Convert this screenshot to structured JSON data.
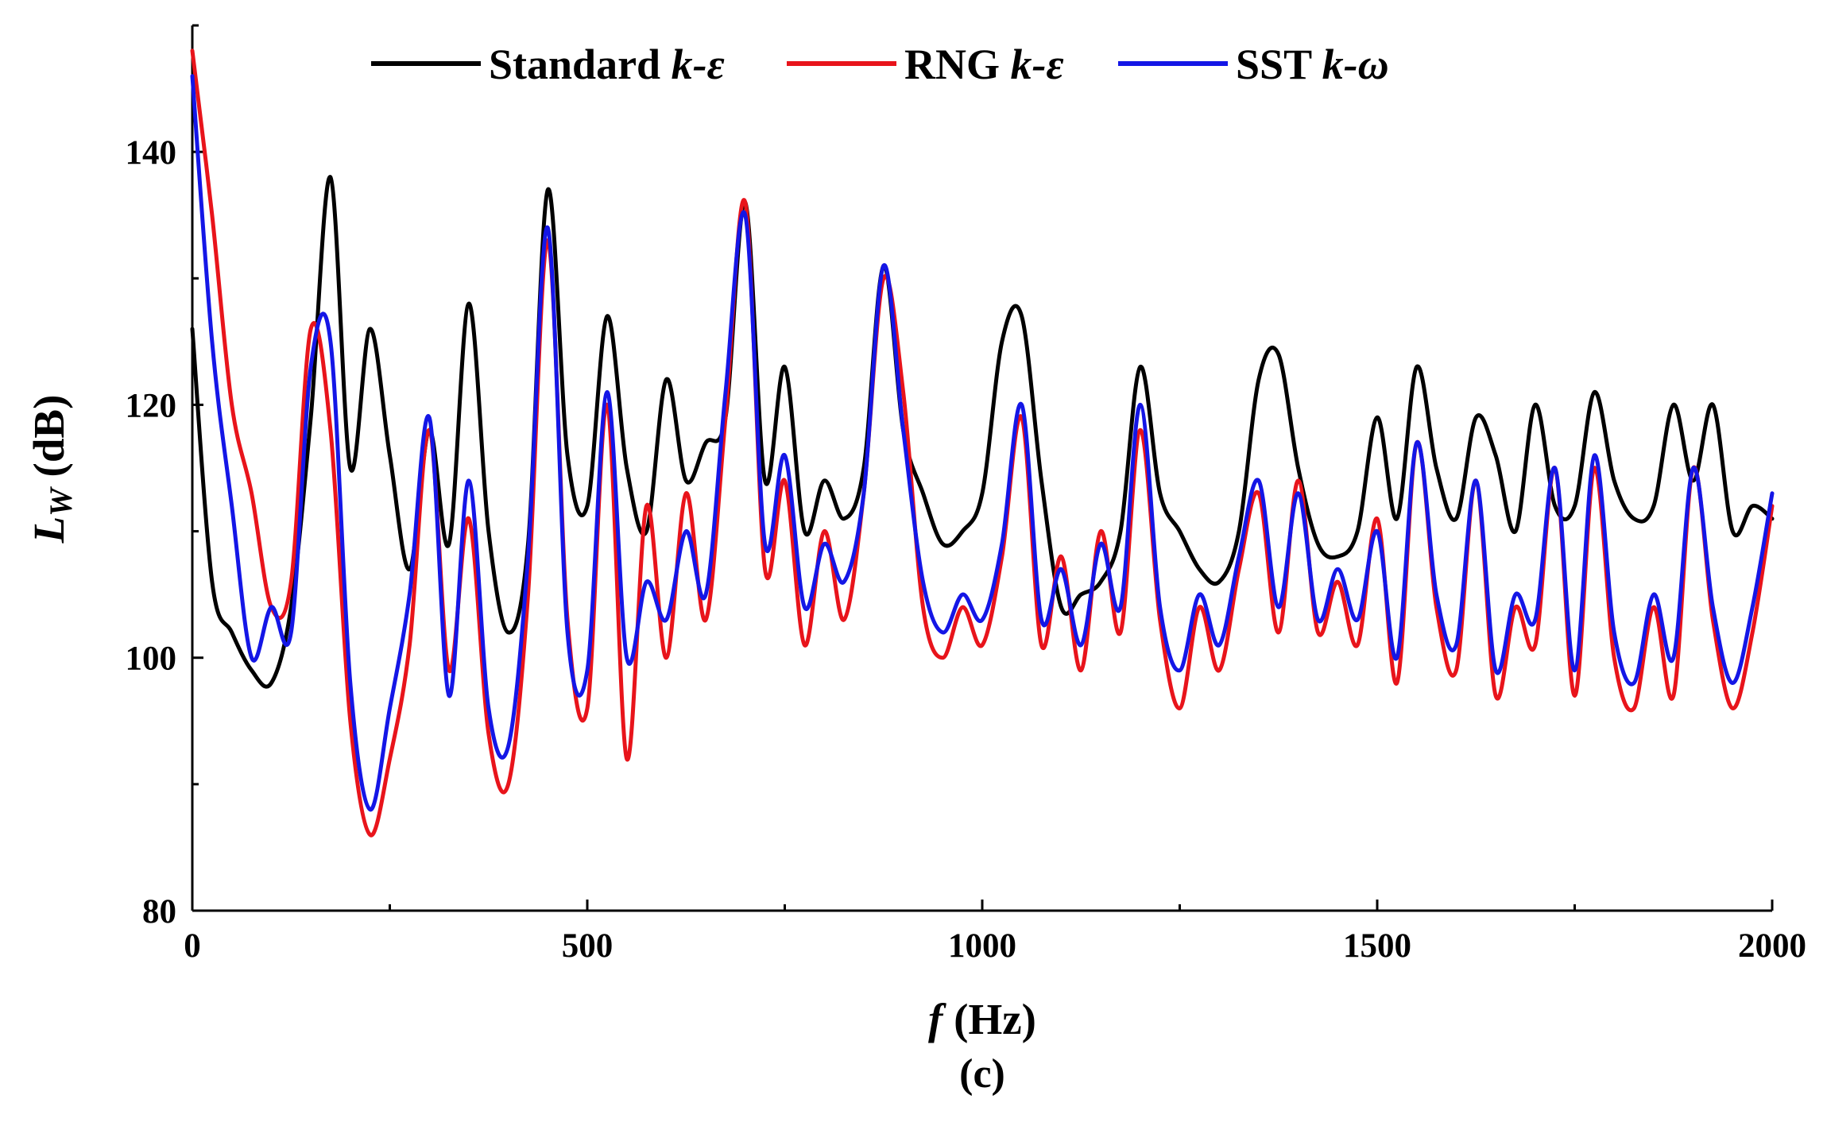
{
  "chart_data": {
    "type": "line",
    "caption": "(c)",
    "xlabel_symbol": "f",
    "xlabel_unit": " (Hz)",
    "ylabel_symbol": "L",
    "ylabel_sub": "W",
    "ylabel_unit": " (dB)",
    "xlim": [
      0,
      2000
    ],
    "ylim": [
      80,
      150
    ],
    "xticks": [
      0,
      500,
      1000,
      1500,
      2000
    ],
    "xtick_labels": [
      "0",
      "500",
      "1000",
      "1500",
      "2000"
    ],
    "yticks": [
      80,
      100,
      120,
      140
    ],
    "ytick_labels": [
      "80",
      "100",
      "120",
      "140"
    ],
    "legend_position": "top-center",
    "series": [
      {
        "name": "Standard",
        "name_italic": "k-ε",
        "color": "#000000",
        "x": [
          0,
          25,
          50,
          75,
          100,
          125,
          150,
          175,
          200,
          225,
          250,
          275,
          300,
          325,
          350,
          375,
          400,
          425,
          450,
          475,
          500,
          525,
          550,
          575,
          600,
          625,
          650,
          675,
          700,
          725,
          750,
          775,
          800,
          825,
          850,
          875,
          900,
          925,
          950,
          975,
          1000,
          1025,
          1050,
          1075,
          1100,
          1125,
          1150,
          1175,
          1200,
          1225,
          1250,
          1275,
          1300,
          1325,
          1350,
          1375,
          1400,
          1425,
          1450,
          1475,
          1500,
          1525,
          1550,
          1575,
          1600,
          1625,
          1650,
          1675,
          1700,
          1725,
          1750,
          1775,
          1800,
          1825,
          1850,
          1875,
          1900,
          1925,
          1950,
          1975,
          2000
        ],
        "y": [
          126,
          106,
          102,
          99,
          98,
          104,
          119,
          138,
          115,
          126,
          116,
          107,
          118,
          109,
          128,
          110,
          102,
          109,
          137,
          116,
          112,
          127,
          115,
          110,
          122,
          114,
          117,
          119,
          136,
          114,
          123,
          110,
          114,
          111,
          115,
          131,
          118,
          113,
          109,
          110,
          113,
          125,
          127,
          114,
          104,
          105,
          106,
          110,
          123,
          113,
          110,
          107,
          106,
          110,
          122,
          124,
          115,
          109,
          108,
          110,
          119,
          111,
          123,
          115,
          111,
          119,
          116,
          110,
          120,
          112,
          112,
          121,
          114,
          111,
          112,
          120,
          114,
          120,
          110,
          112,
          111
        ]
      },
      {
        "name": "RNG",
        "name_italic": "k-ε",
        "color": "#e8141b",
        "x": [
          0,
          25,
          50,
          75,
          100,
          125,
          150,
          175,
          200,
          225,
          250,
          275,
          300,
          325,
          350,
          375,
          400,
          425,
          450,
          475,
          500,
          525,
          550,
          575,
          600,
          625,
          650,
          675,
          700,
          725,
          750,
          775,
          800,
          825,
          850,
          875,
          900,
          925,
          950,
          975,
          1000,
          1025,
          1050,
          1075,
          1100,
          1125,
          1150,
          1175,
          1200,
          1225,
          1250,
          1275,
          1300,
          1325,
          1350,
          1375,
          1400,
          1425,
          1450,
          1475,
          1500,
          1525,
          1550,
          1575,
          1600,
          1625,
          1650,
          1675,
          1700,
          1725,
          1750,
          1775,
          1800,
          1825,
          1850,
          1875,
          1900,
          1925,
          1950,
          1975,
          2000
        ],
        "y": [
          148,
          135,
          120,
          113,
          104,
          106,
          126,
          118,
          95,
          86,
          92,
          101,
          118,
          99,
          111,
          94,
          90,
          105,
          133,
          103,
          96,
          120,
          92,
          112,
          100,
          113,
          103,
          119,
          136,
          107,
          114,
          101,
          110,
          103,
          113,
          130,
          121,
          104,
          100,
          104,
          101,
          108,
          119,
          101,
          108,
          99,
          110,
          102,
          118,
          103,
          96,
          104,
          99,
          107,
          113,
          102,
          114,
          102,
          106,
          101,
          111,
          98,
          117,
          104,
          99,
          114,
          97,
          104,
          101,
          115,
          97,
          115,
          100,
          96,
          104,
          97,
          115,
          103,
          96,
          102,
          112
        ]
      },
      {
        "name": "SST",
        "name_italic": "k-ω",
        "color": "#1416e6",
        "x": [
          0,
          25,
          50,
          75,
          100,
          125,
          150,
          175,
          200,
          225,
          250,
          275,
          300,
          325,
          350,
          375,
          400,
          425,
          450,
          475,
          500,
          525,
          550,
          575,
          600,
          625,
          650,
          675,
          700,
          725,
          750,
          775,
          800,
          825,
          850,
          875,
          900,
          925,
          950,
          975,
          1000,
          1025,
          1050,
          1075,
          1100,
          1125,
          1150,
          1175,
          1200,
          1225,
          1250,
          1275,
          1300,
          1325,
          1350,
          1375,
          1400,
          1425,
          1450,
          1475,
          1500,
          1525,
          1550,
          1575,
          1600,
          1625,
          1650,
          1675,
          1700,
          1725,
          1750,
          1775,
          1800,
          1825,
          1850,
          1875,
          1900,
          1925,
          1950,
          1975,
          2000
        ],
        "y": [
          146,
          125,
          112,
          100,
          104,
          102,
          123,
          125,
          98,
          88,
          96,
          105,
          119,
          97,
          114,
          96,
          93,
          108,
          134,
          102,
          99,
          121,
          100,
          106,
          103,
          110,
          105,
          121,
          135,
          109,
          116,
          104,
          109,
          106,
          113,
          131,
          118,
          106,
          102,
          105,
          103,
          109,
          120,
          103,
          107,
          101,
          109,
          104,
          120,
          104,
          99,
          105,
          101,
          108,
          114,
          104,
          113,
          103,
          107,
          103,
          110,
          100,
          117,
          105,
          101,
          114,
          99,
          105,
          103,
          115,
          99,
          116,
          102,
          98,
          105,
          100,
          115,
          104,
          98,
          104,
          113
        ]
      }
    ]
  }
}
